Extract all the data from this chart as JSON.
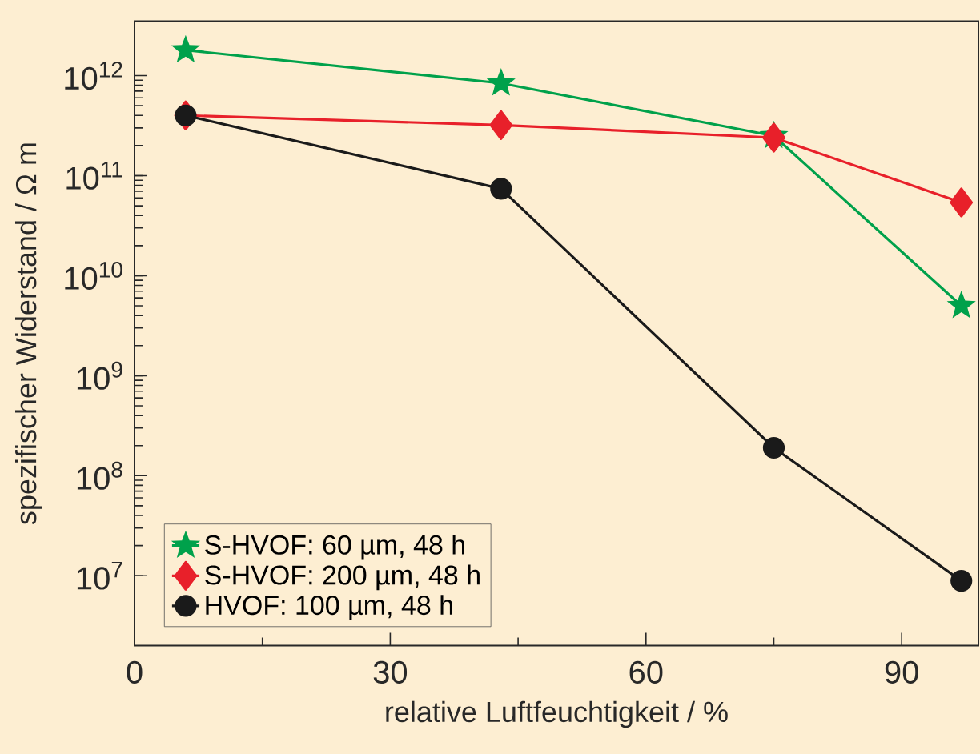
{
  "chart_data": {
    "type": "line",
    "xlabel": "relative Luftfeuchtigkeit / %",
    "ylabel": "spezifischer Widerstand / Ω m",
    "x": [
      6,
      43,
      75,
      97
    ],
    "series": [
      {
        "name": "S-HVOF: 60 µm, 48 h",
        "color": "#00a14b",
        "marker": "star",
        "values": [
          1800000000000.0,
          840000000000.0,
          250000000000.0,
          5000000000.0
        ]
      },
      {
        "name": "S-HVOF: 200 µm, 48 h",
        "color": "#e8202a",
        "marker": "diamond",
        "values": [
          400000000000.0,
          320000000000.0,
          240000000000.0,
          54000000000.0
        ]
      },
      {
        "name": "HVOF: 100 µm, 48 h",
        "color": "#1a1a1a",
        "marker": "circle",
        "values": [
          400000000000.0,
          74000000000.0,
          190000000.0,
          8900000.0
        ]
      }
    ],
    "log": "y",
    "xlim": [
      0,
      99
    ],
    "ylim": [
      2000000.0,
      3500000000000.0
    ],
    "xticks": [
      0,
      30,
      60,
      90
    ],
    "yticks": [
      {
        "value": 10000000.0,
        "label": "10$^{7}$"
      },
      {
        "value": 100000000.0,
        "label": "10$^{8}$"
      },
      {
        "value": 1000000000.0,
        "label": "10$^{9}$"
      },
      {
        "value": 10000000000.0,
        "label": "10$^{10}$"
      },
      {
        "value": 100000000000.0,
        "label": "10$^{11}$"
      },
      {
        "value": 1000000000000.0,
        "label": "10$^{12}$"
      }
    ],
    "grid": false,
    "legend": "bottom left",
    "line_style": "solid"
  }
}
